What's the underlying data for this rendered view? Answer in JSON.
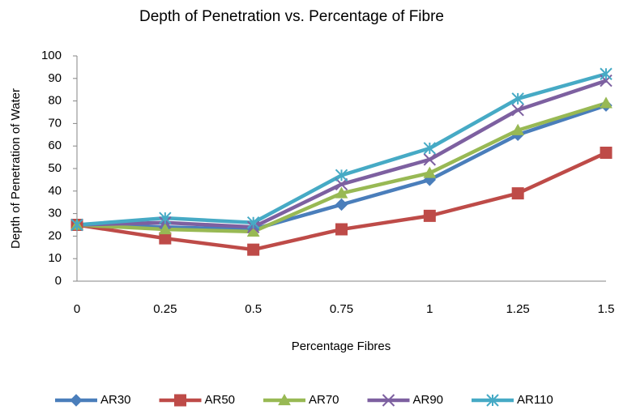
{
  "chart_data": {
    "type": "line",
    "title": "Depth of Penetration vs. Percentage of Fibre",
    "x_label": "Percentage Fibres",
    "y_label": "Depth of Penetration of Water",
    "x": [
      0,
      0.25,
      0.5,
      0.75,
      1,
      1.25,
      1.5
    ],
    "xlim": [
      0,
      1.5
    ],
    "xticks": [
      0,
      0.25,
      0.5,
      0.75,
      1,
      1.25,
      1.5
    ],
    "ylim": [
      0,
      100
    ],
    "yticks": [
      0,
      10,
      20,
      30,
      40,
      50,
      60,
      70,
      80,
      90,
      100
    ],
    "grid": false,
    "legend": "bottom",
    "series": [
      {
        "name": "AR30",
        "color": "#4a7ebb",
        "marker": "diamond",
        "values": [
          25,
          24,
          23,
          34,
          45,
          65,
          78
        ]
      },
      {
        "name": "AR50",
        "color": "#be4b48",
        "marker": "square",
        "values": [
          25,
          19,
          14,
          23,
          29,
          39,
          57
        ]
      },
      {
        "name": "AR70",
        "color": "#98b954",
        "marker": "triangle",
        "values": [
          25,
          23,
          22,
          39,
          48,
          67,
          79
        ]
      },
      {
        "name": "AR90",
        "color": "#7d60a0",
        "marker": "x",
        "values": [
          25,
          26,
          24,
          43,
          54,
          76,
          89
        ]
      },
      {
        "name": "AR110",
        "color": "#46aac5",
        "marker": "asterisk",
        "values": [
          25,
          28,
          26,
          47,
          59,
          81,
          92
        ]
      }
    ]
  }
}
